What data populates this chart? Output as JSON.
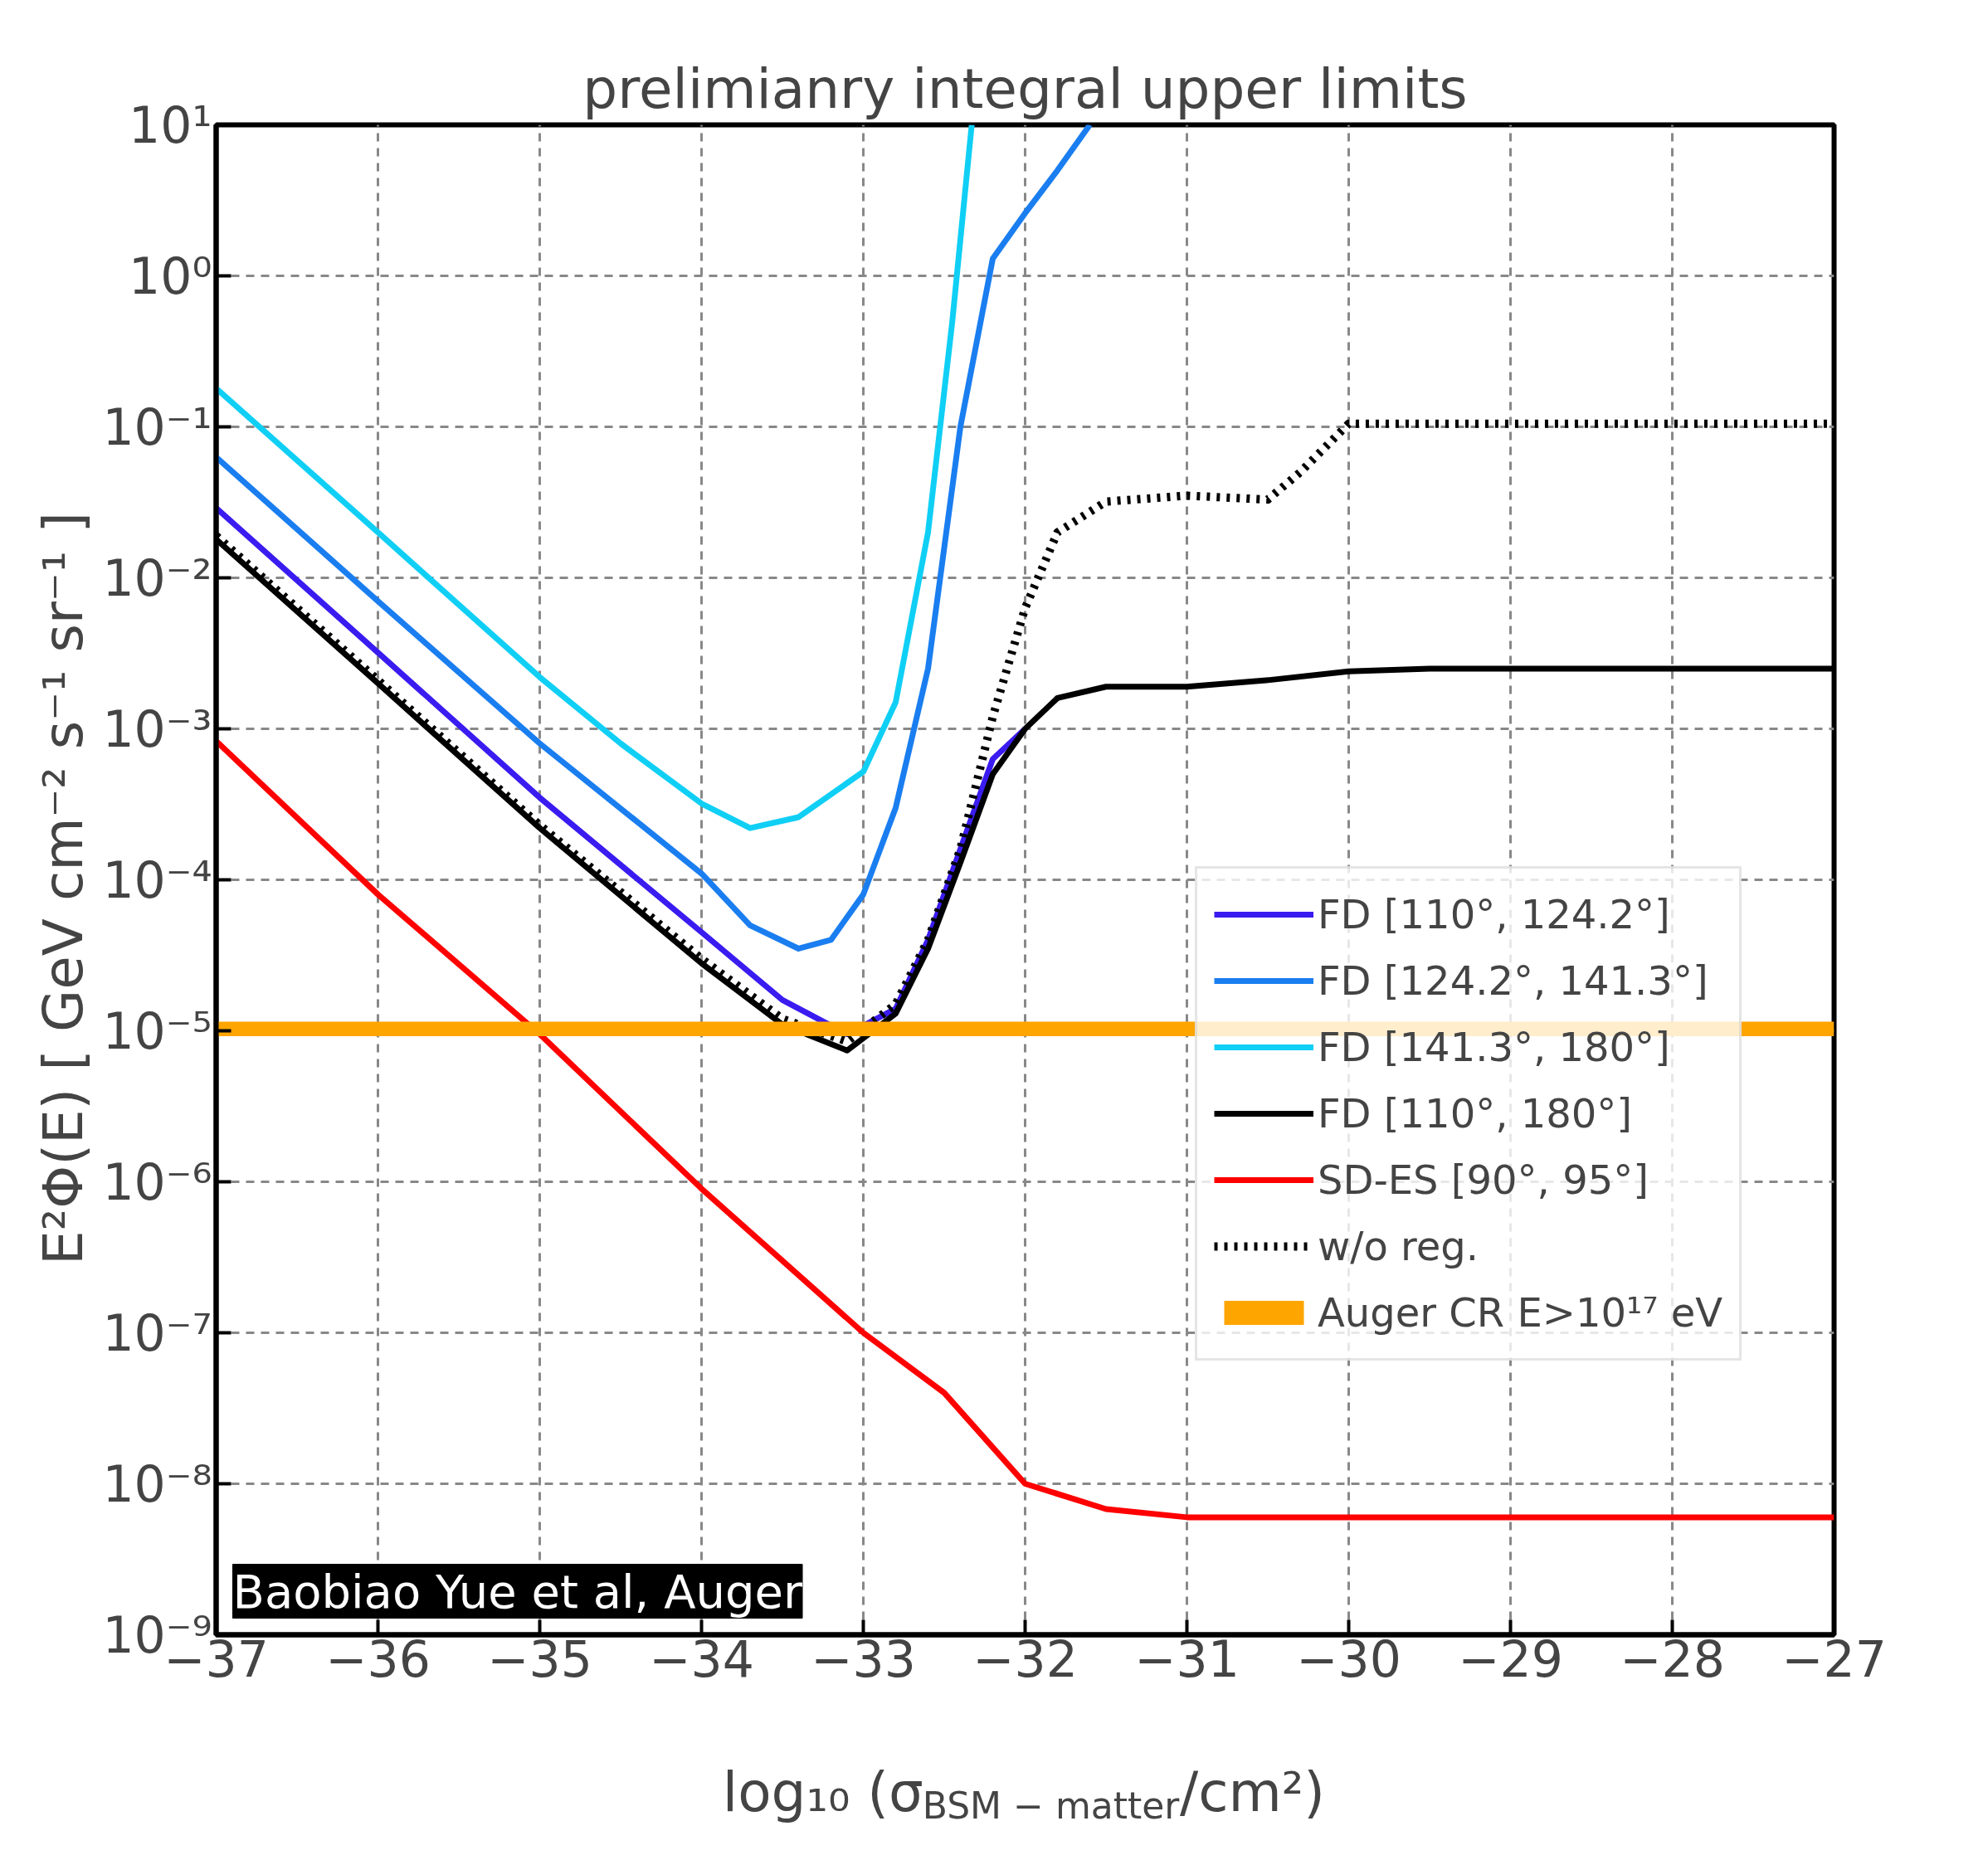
{
  "chart_data": {
    "type": "line",
    "title": "prelimianry integral upper limits",
    "xlabel": "log₁₀ (σ$_{BSM − matter}$/cm²)",
    "ylabel": "E²Φ(E)  [ GeV cm⁻² s⁻¹ sr⁻¹ ]",
    "log": "y",
    "grid": true,
    "legend": "right",
    "line_style": "solid",
    "xlim": [
      -37,
      -27
    ],
    "xticks": [
      {
        "value": -37,
        "label": "−37"
      },
      {
        "value": -36,
        "label": "−36"
      },
      {
        "value": -35,
        "label": "−35"
      },
      {
        "value": -34,
        "label": "−34"
      },
      {
        "value": -33,
        "label": "−33"
      },
      {
        "value": -32,
        "label": "−32"
      },
      {
        "value": -31,
        "label": "−31"
      },
      {
        "value": -30,
        "label": "−30"
      },
      {
        "value": -29,
        "label": "−29"
      },
      {
        "value": -28,
        "label": "−28"
      },
      {
        "value": -27,
        "label": "−27"
      }
    ],
    "ylim": [
      1e-09,
      10
    ],
    "yticks": [
      {
        "value": 1e-09,
        "label": "10⁻⁹"
      },
      {
        "value": 1e-08,
        "label": "10⁻⁸"
      },
      {
        "value": 1e-07,
        "label": "10⁻⁷"
      },
      {
        "value": 1e-06,
        "label": "10⁻⁶"
      },
      {
        "value": 1e-05,
        "label": "10⁻⁵"
      },
      {
        "value": 0.0001,
        "label": "10⁻⁴"
      },
      {
        "value": 0.001,
        "label": "10⁻³"
      },
      {
        "value": 0.01,
        "label": "10⁻²"
      },
      {
        "value": 0.1,
        "label": "10⁻¹"
      },
      {
        "value": 1,
        "label": "10⁰"
      },
      {
        "value": 10,
        "label": "10¹"
      }
    ],
    "series": [
      {
        "name": "FD [110°, 124.2°]",
        "color": "#3a1cf0",
        "x": [
          -37,
          -36,
          -35,
          -34,
          -33.5,
          -33.1,
          -32.8,
          -32.6,
          -32.4,
          -32.2,
          -32
        ],
        "values": [
          0.029,
          0.0032,
          0.00035,
          4.5e-05,
          1.6e-05,
          9.5e-06,
          1.4e-05,
          4e-05,
          0.00016,
          0.00063,
          0.001
        ]
      },
      {
        "name": "FD [124.2°, 141.3°]",
        "color": "#1a7ef0",
        "x": [
          -37,
          -36,
          -35,
          -34,
          -33.7,
          -33.4,
          -33.2,
          -33,
          -32.8,
          -32.6,
          -32.4,
          -32.2,
          -32,
          -31.8,
          -31.6
        ],
        "values": [
          0.063,
          0.007,
          0.0008,
          0.00011,
          5e-05,
          3.5e-05,
          4e-05,
          8e-05,
          0.0003,
          0.0025,
          0.1,
          1.3,
          2.6,
          5,
          10
        ]
      },
      {
        "name": "FD [141.3°, 180°]",
        "color": "#10cff5",
        "x": [
          -37,
          -36,
          -35,
          -34.5,
          -34,
          -33.7,
          -33.4,
          -33,
          -32.8,
          -32.6,
          -32.45,
          -32.33
        ],
        "values": [
          0.18,
          0.02,
          0.0022,
          0.0008,
          0.00032,
          0.00022,
          0.00026,
          0.00052,
          0.0015,
          0.02,
          0.5,
          10
        ]
      },
      {
        "name": "FD [110°, 180°]",
        "color": "#000000",
        "x": [
          -37,
          -36,
          -35,
          -34,
          -33.5,
          -33.1,
          -32.8,
          -32.6,
          -32.4,
          -32.2,
          -32,
          -31.8,
          -31.5,
          -31,
          -30.5,
          -30,
          -29.5,
          -27
        ],
        "values": [
          0.018,
          0.002,
          0.00022,
          2.8e-05,
          1.1e-05,
          7.4e-06,
          1.3e-05,
          3.5e-05,
          0.00013,
          0.0005,
          0.001,
          0.0016,
          0.0019,
          0.0019,
          0.0021,
          0.0024,
          0.0025,
          0.0025
        ]
      },
      {
        "name": "SD-ES [90°, 95°]",
        "color": "#ff0000",
        "x": [
          -37,
          -36,
          -35,
          -34,
          -33,
          -32.5,
          -32,
          -31.5,
          -31,
          -27
        ],
        "values": [
          0.00083,
          8e-05,
          9.5e-06,
          9e-07,
          1e-07,
          4e-08,
          1e-08,
          6.8e-09,
          6e-09,
          6e-09
        ]
      },
      {
        "name": "w/o reg.",
        "color": "#000000",
        "line_style": "dotted",
        "x": [
          -37,
          -36,
          -35,
          -34,
          -33.5,
          -33.1,
          -32.8,
          -32.6,
          -32.4,
          -32.2,
          -32,
          -31.8,
          -31.5,
          -31,
          -30.5,
          -30.3,
          -30,
          -27
        ],
        "values": [
          0.019,
          0.0021,
          0.00023,
          3e-05,
          1.2e-05,
          8.5e-06,
          1.5e-05,
          4e-05,
          0.00016,
          0.0012,
          0.0063,
          0.02,
          0.032,
          0.035,
          0.033,
          0.05,
          0.105,
          0.105
        ]
      }
    ],
    "bands": [
      {
        "axis": "y",
        "from": 9.2e-06,
        "to": 1.15e-05,
        "label": "Auger CR E>10¹⁷ eV",
        "color": "#ffa500"
      }
    ],
    "annotations": [
      "Baobiao Yue et al, Auger"
    ]
  }
}
